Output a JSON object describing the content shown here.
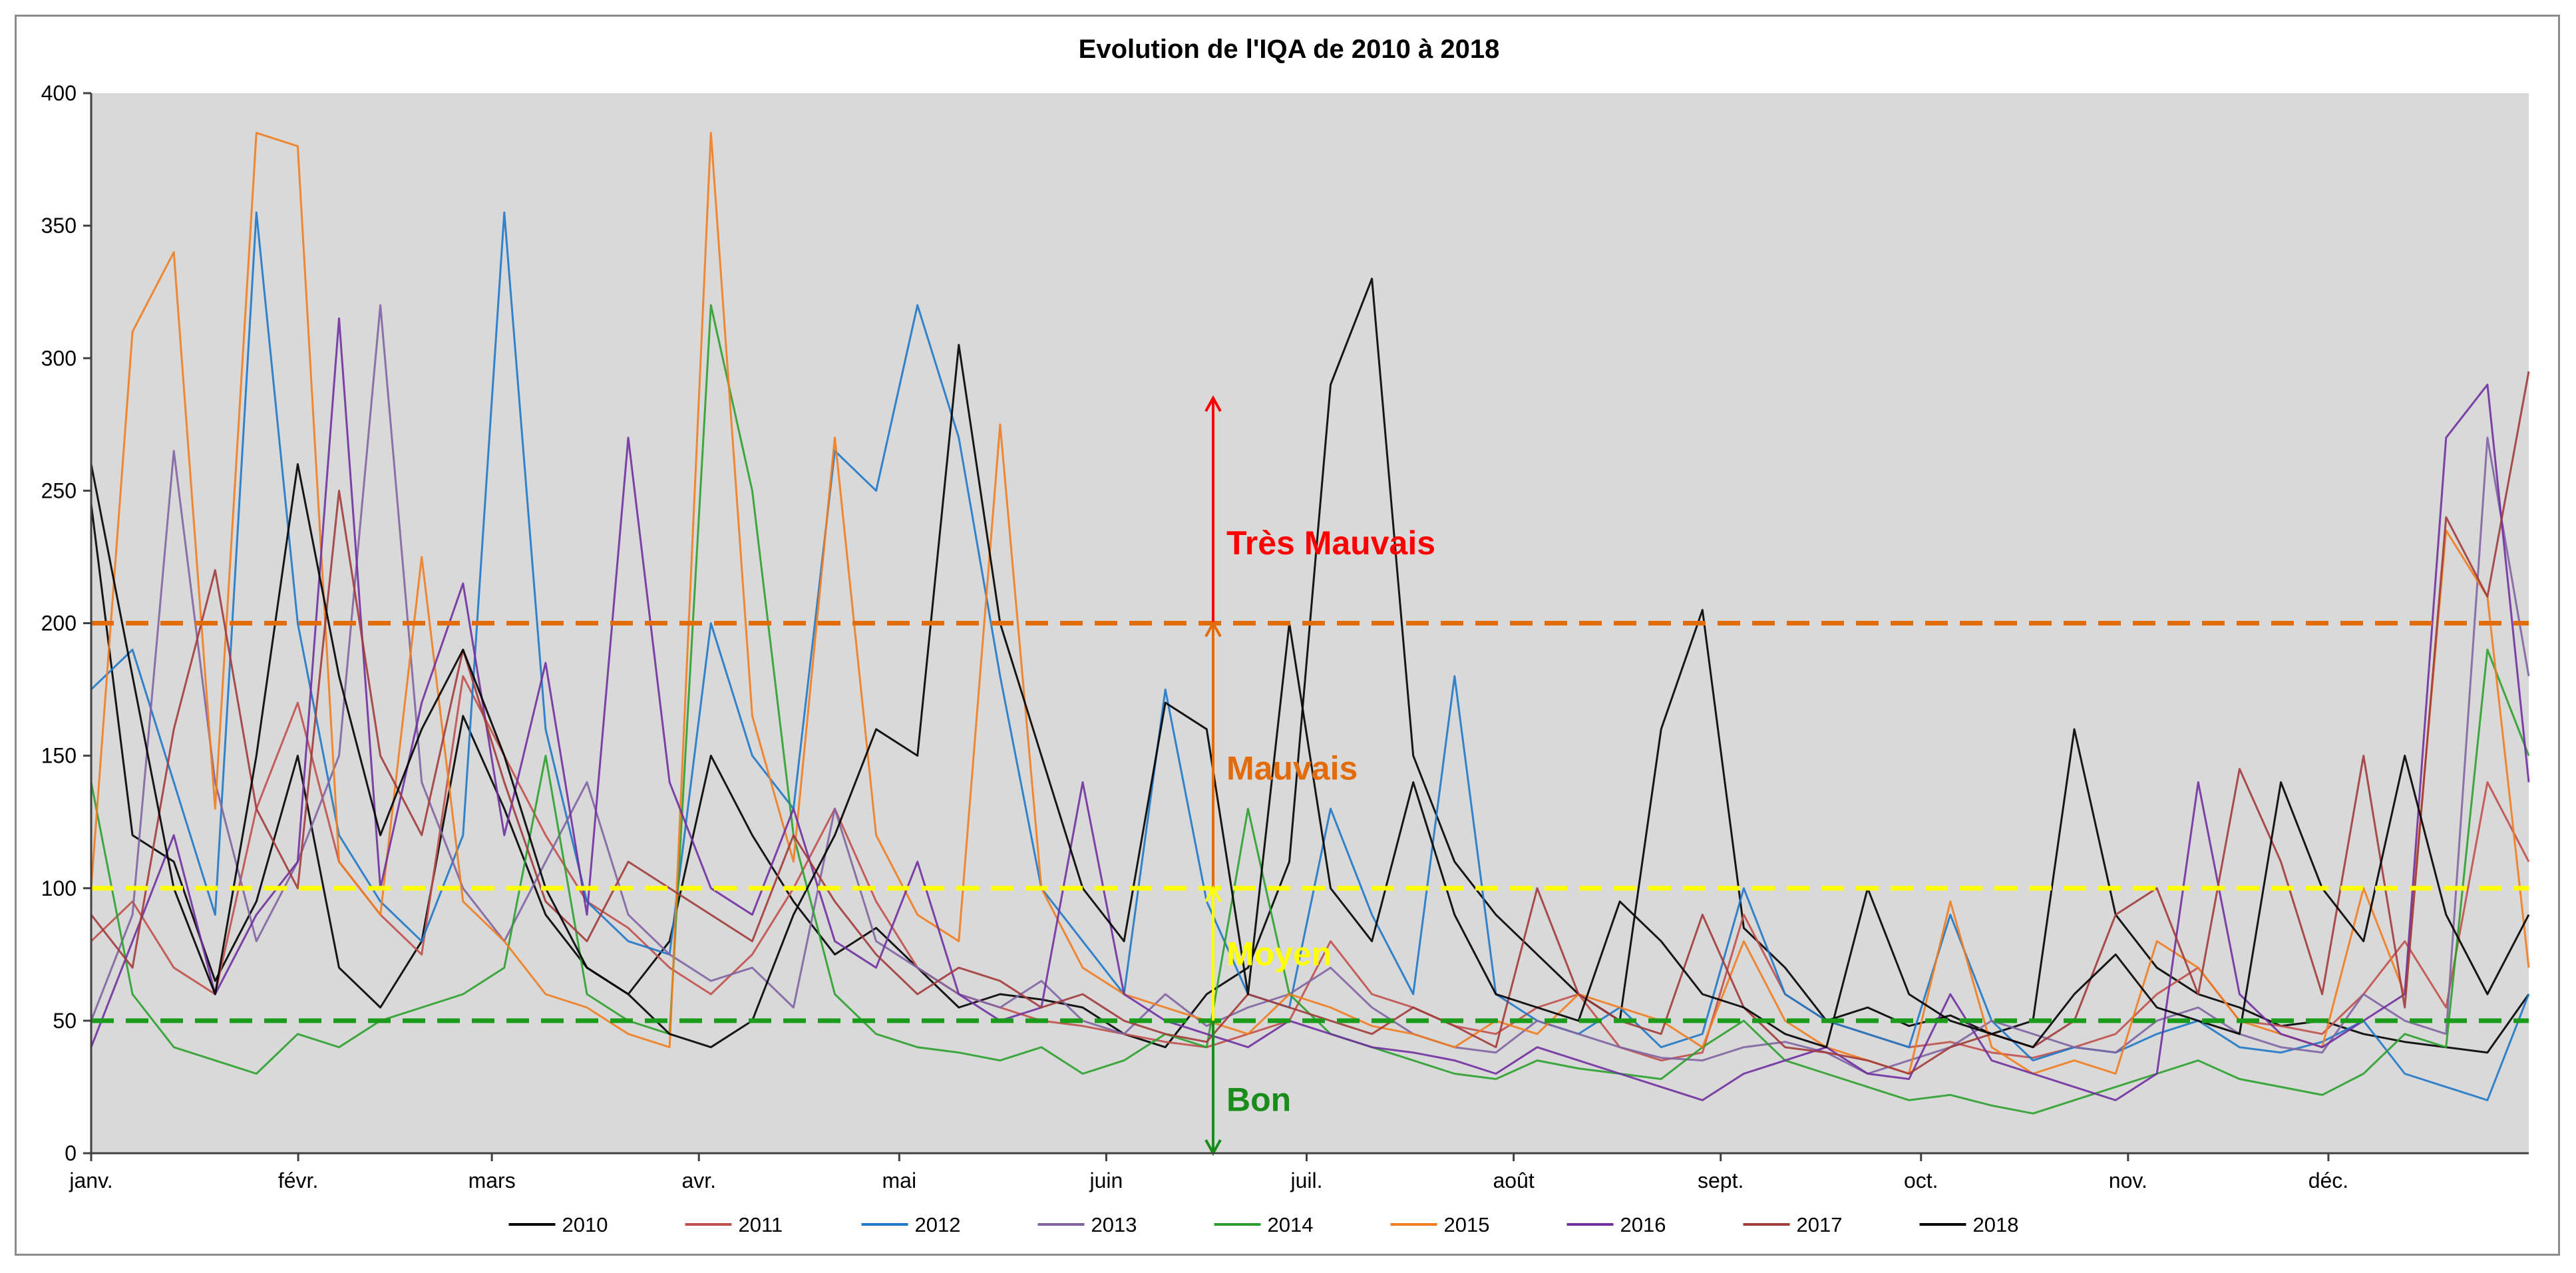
{
  "chart_data": {
    "type": "line",
    "title": "Evolution de l'IQA de 2010 à 2018",
    "xlabel": "",
    "ylabel": "",
    "ylim": [
      0,
      400
    ],
    "yticks": [
      0,
      50,
      100,
      150,
      200,
      250,
      300,
      350,
      400
    ],
    "xlim": [
      0,
      365
    ],
    "month_labels": [
      "janv.",
      "févr.",
      "mars",
      "avr.",
      "mai",
      "juin",
      "juil.",
      "août",
      "sept.",
      "oct.",
      "nov.",
      "déc."
    ],
    "month_starts": [
      0,
      31,
      60,
      91,
      121,
      152,
      182,
      213,
      244,
      274,
      305,
      335
    ],
    "legend_position": "bottom",
    "series": [
      {
        "name": "2010",
        "color": "#000000",
        "values": [
          245,
          120,
          110,
          65,
          95,
          150,
          70,
          55,
          80,
          165,
          130,
          90,
          70,
          60,
          80,
          150,
          120,
          95,
          75,
          85,
          70,
          55,
          60,
          58,
          55,
          45,
          40,
          60,
          70,
          110,
          290,
          330,
          150,
          110,
          90,
          75,
          60,
          50,
          160,
          205,
          85,
          70,
          50,
          55,
          48,
          52,
          45,
          50,
          160,
          90,
          70,
          60,
          55,
          48,
          50,
          45,
          42,
          40,
          38,
          60
        ]
      },
      {
        "name": "2011",
        "color": "#c0504d",
        "values": [
          80,
          95,
          70,
          60,
          130,
          170,
          110,
          90,
          75,
          180,
          150,
          120,
          95,
          85,
          70,
          60,
          75,
          100,
          130,
          95,
          70,
          60,
          55,
          50,
          48,
          45,
          42,
          40,
          45,
          50,
          80,
          60,
          55,
          48,
          45,
          55,
          60,
          40,
          35,
          38,
          90,
          60,
          50,
          45,
          40,
          42,
          38,
          36,
          40,
          45,
          60,
          70,
          50,
          48,
          45,
          60,
          80,
          55,
          140,
          110
        ]
      },
      {
        "name": "2012",
        "color": "#1f78c8",
        "values": [
          175,
          190,
          140,
          90,
          355,
          200,
          120,
          95,
          80,
          120,
          355,
          160,
          95,
          80,
          75,
          200,
          150,
          130,
          265,
          250,
          320,
          270,
          180,
          100,
          80,
          60,
          175,
          95,
          60,
          55,
          130,
          90,
          60,
          180,
          60,
          50,
          45,
          55,
          40,
          45,
          100,
          60,
          50,
          45,
          40,
          90,
          50,
          35,
          40,
          38,
          45,
          50,
          40,
          38,
          42,
          50,
          30,
          25,
          20,
          60
        ]
      },
      {
        "name": "2013",
        "color": "#8064a2",
        "values": [
          50,
          90,
          265,
          140,
          80,
          110,
          150,
          320,
          140,
          100,
          80,
          110,
          140,
          90,
          75,
          65,
          70,
          55,
          130,
          80,
          70,
          60,
          55,
          65,
          50,
          45,
          60,
          48,
          55,
          60,
          70,
          55,
          45,
          40,
          38,
          50,
          45,
          40,
          36,
          35,
          40,
          42,
          38,
          30,
          35,
          40,
          50,
          45,
          40,
          38,
          50,
          55,
          45,
          40,
          38,
          60,
          50,
          45,
          270,
          180
        ]
      },
      {
        "name": "2014",
        "color": "#2ca02c",
        "values": [
          140,
          60,
          40,
          35,
          30,
          45,
          40,
          50,
          55,
          60,
          70,
          150,
          60,
          50,
          45,
          320,
          250,
          120,
          60,
          45,
          40,
          38,
          35,
          40,
          30,
          35,
          45,
          40,
          130,
          60,
          45,
          40,
          35,
          30,
          28,
          35,
          32,
          30,
          28,
          40,
          50,
          35,
          30,
          25,
          20,
          22,
          18,
          15,
          20,
          25,
          30,
          35,
          28,
          25,
          22,
          30,
          45,
          40,
          190,
          150
        ]
      },
      {
        "name": "2015",
        "color": "#f07c1f",
        "values": [
          100,
          310,
          340,
          130,
          385,
          380,
          110,
          90,
          225,
          95,
          80,
          60,
          55,
          45,
          40,
          385,
          165,
          110,
          270,
          120,
          90,
          80,
          275,
          100,
          70,
          60,
          55,
          50,
          45,
          60,
          55,
          48,
          45,
          40,
          50,
          45,
          60,
          55,
          50,
          40,
          80,
          50,
          40,
          35,
          30,
          95,
          40,
          30,
          35,
          30,
          80,
          70,
          50,
          45,
          40,
          100,
          60,
          235,
          210,
          70
        ]
      },
      {
        "name": "2016",
        "color": "#7030a0",
        "values": [
          40,
          80,
          120,
          60,
          90,
          110,
          315,
          100,
          170,
          215,
          120,
          185,
          90,
          270,
          140,
          100,
          90,
          130,
          80,
          70,
          110,
          60,
          50,
          55,
          140,
          60,
          50,
          45,
          40,
          50,
          45,
          40,
          38,
          35,
          30,
          40,
          35,
          30,
          25,
          20,
          30,
          35,
          40,
          30,
          28,
          60,
          35,
          30,
          25,
          20,
          30,
          140,
          60,
          45,
          40,
          50,
          60,
          270,
          290,
          140
        ]
      },
      {
        "name": "2017",
        "color": "#a23b3b",
        "values": [
          90,
          70,
          160,
          220,
          130,
          100,
          250,
          150,
          120,
          190,
          140,
          95,
          80,
          110,
          100,
          90,
          80,
          120,
          95,
          75,
          60,
          70,
          65,
          55,
          60,
          50,
          45,
          42,
          60,
          55,
          50,
          45,
          55,
          48,
          40,
          100,
          60,
          50,
          45,
          90,
          55,
          40,
          38,
          35,
          30,
          40,
          45,
          40,
          50,
          90,
          100,
          60,
          145,
          110,
          60,
          150,
          55,
          240,
          210,
          295
        ]
      },
      {
        "name": "2018",
        "color": "#000000",
        "values": [
          260,
          180,
          100,
          60,
          150,
          260,
          180,
          120,
          160,
          190,
          150,
          100,
          70,
          60,
          45,
          40,
          50,
          90,
          120,
          160,
          150,
          305,
          200,
          150,
          100,
          80,
          170,
          160,
          60,
          200,
          100,
          80,
          140,
          90,
          60,
          55,
          50,
          95,
          80,
          60,
          55,
          45,
          40,
          100,
          60,
          50,
          45,
          40,
          60,
          75,
          55,
          50,
          45,
          140,
          100,
          80,
          150,
          90,
          60,
          90
        ]
      }
    ],
    "reference_lines": [
      {
        "name": "Très Mauvais threshold",
        "y": 200,
        "color": "#e36c0a"
      },
      {
        "name": "Mauvais threshold",
        "y": 100,
        "color": "#ffff00"
      },
      {
        "name": "Moyen threshold",
        "y": 50,
        "color": "#1a9c1a"
      }
    ],
    "category_arrows": [
      {
        "label": "Très Mauvais",
        "color": "#ff0000",
        "y_from": 200,
        "y_to": 285,
        "label_y": 230
      },
      {
        "label": "Mauvais",
        "color": "#e36c0a",
        "y_from": 100,
        "y_to": 200,
        "label_y": 145
      },
      {
        "label": "Moyen",
        "color": "#ffff00",
        "y_from": 50,
        "y_to": 100,
        "label_y": 75
      },
      {
        "label": "Bon",
        "color": "#1a8c1a",
        "y_from": 50,
        "y_to": 0,
        "label_y": 20
      }
    ],
    "arrow_day": 168
  }
}
